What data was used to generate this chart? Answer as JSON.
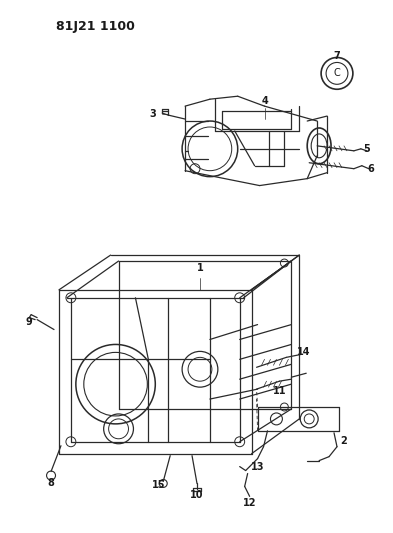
{
  "title": "81J21 1100",
  "bg": "#ffffff",
  "lc": "#2a2a2a",
  "tc": "#1a1a1a",
  "fig_w": 3.93,
  "fig_h": 5.33,
  "dpi": 100
}
